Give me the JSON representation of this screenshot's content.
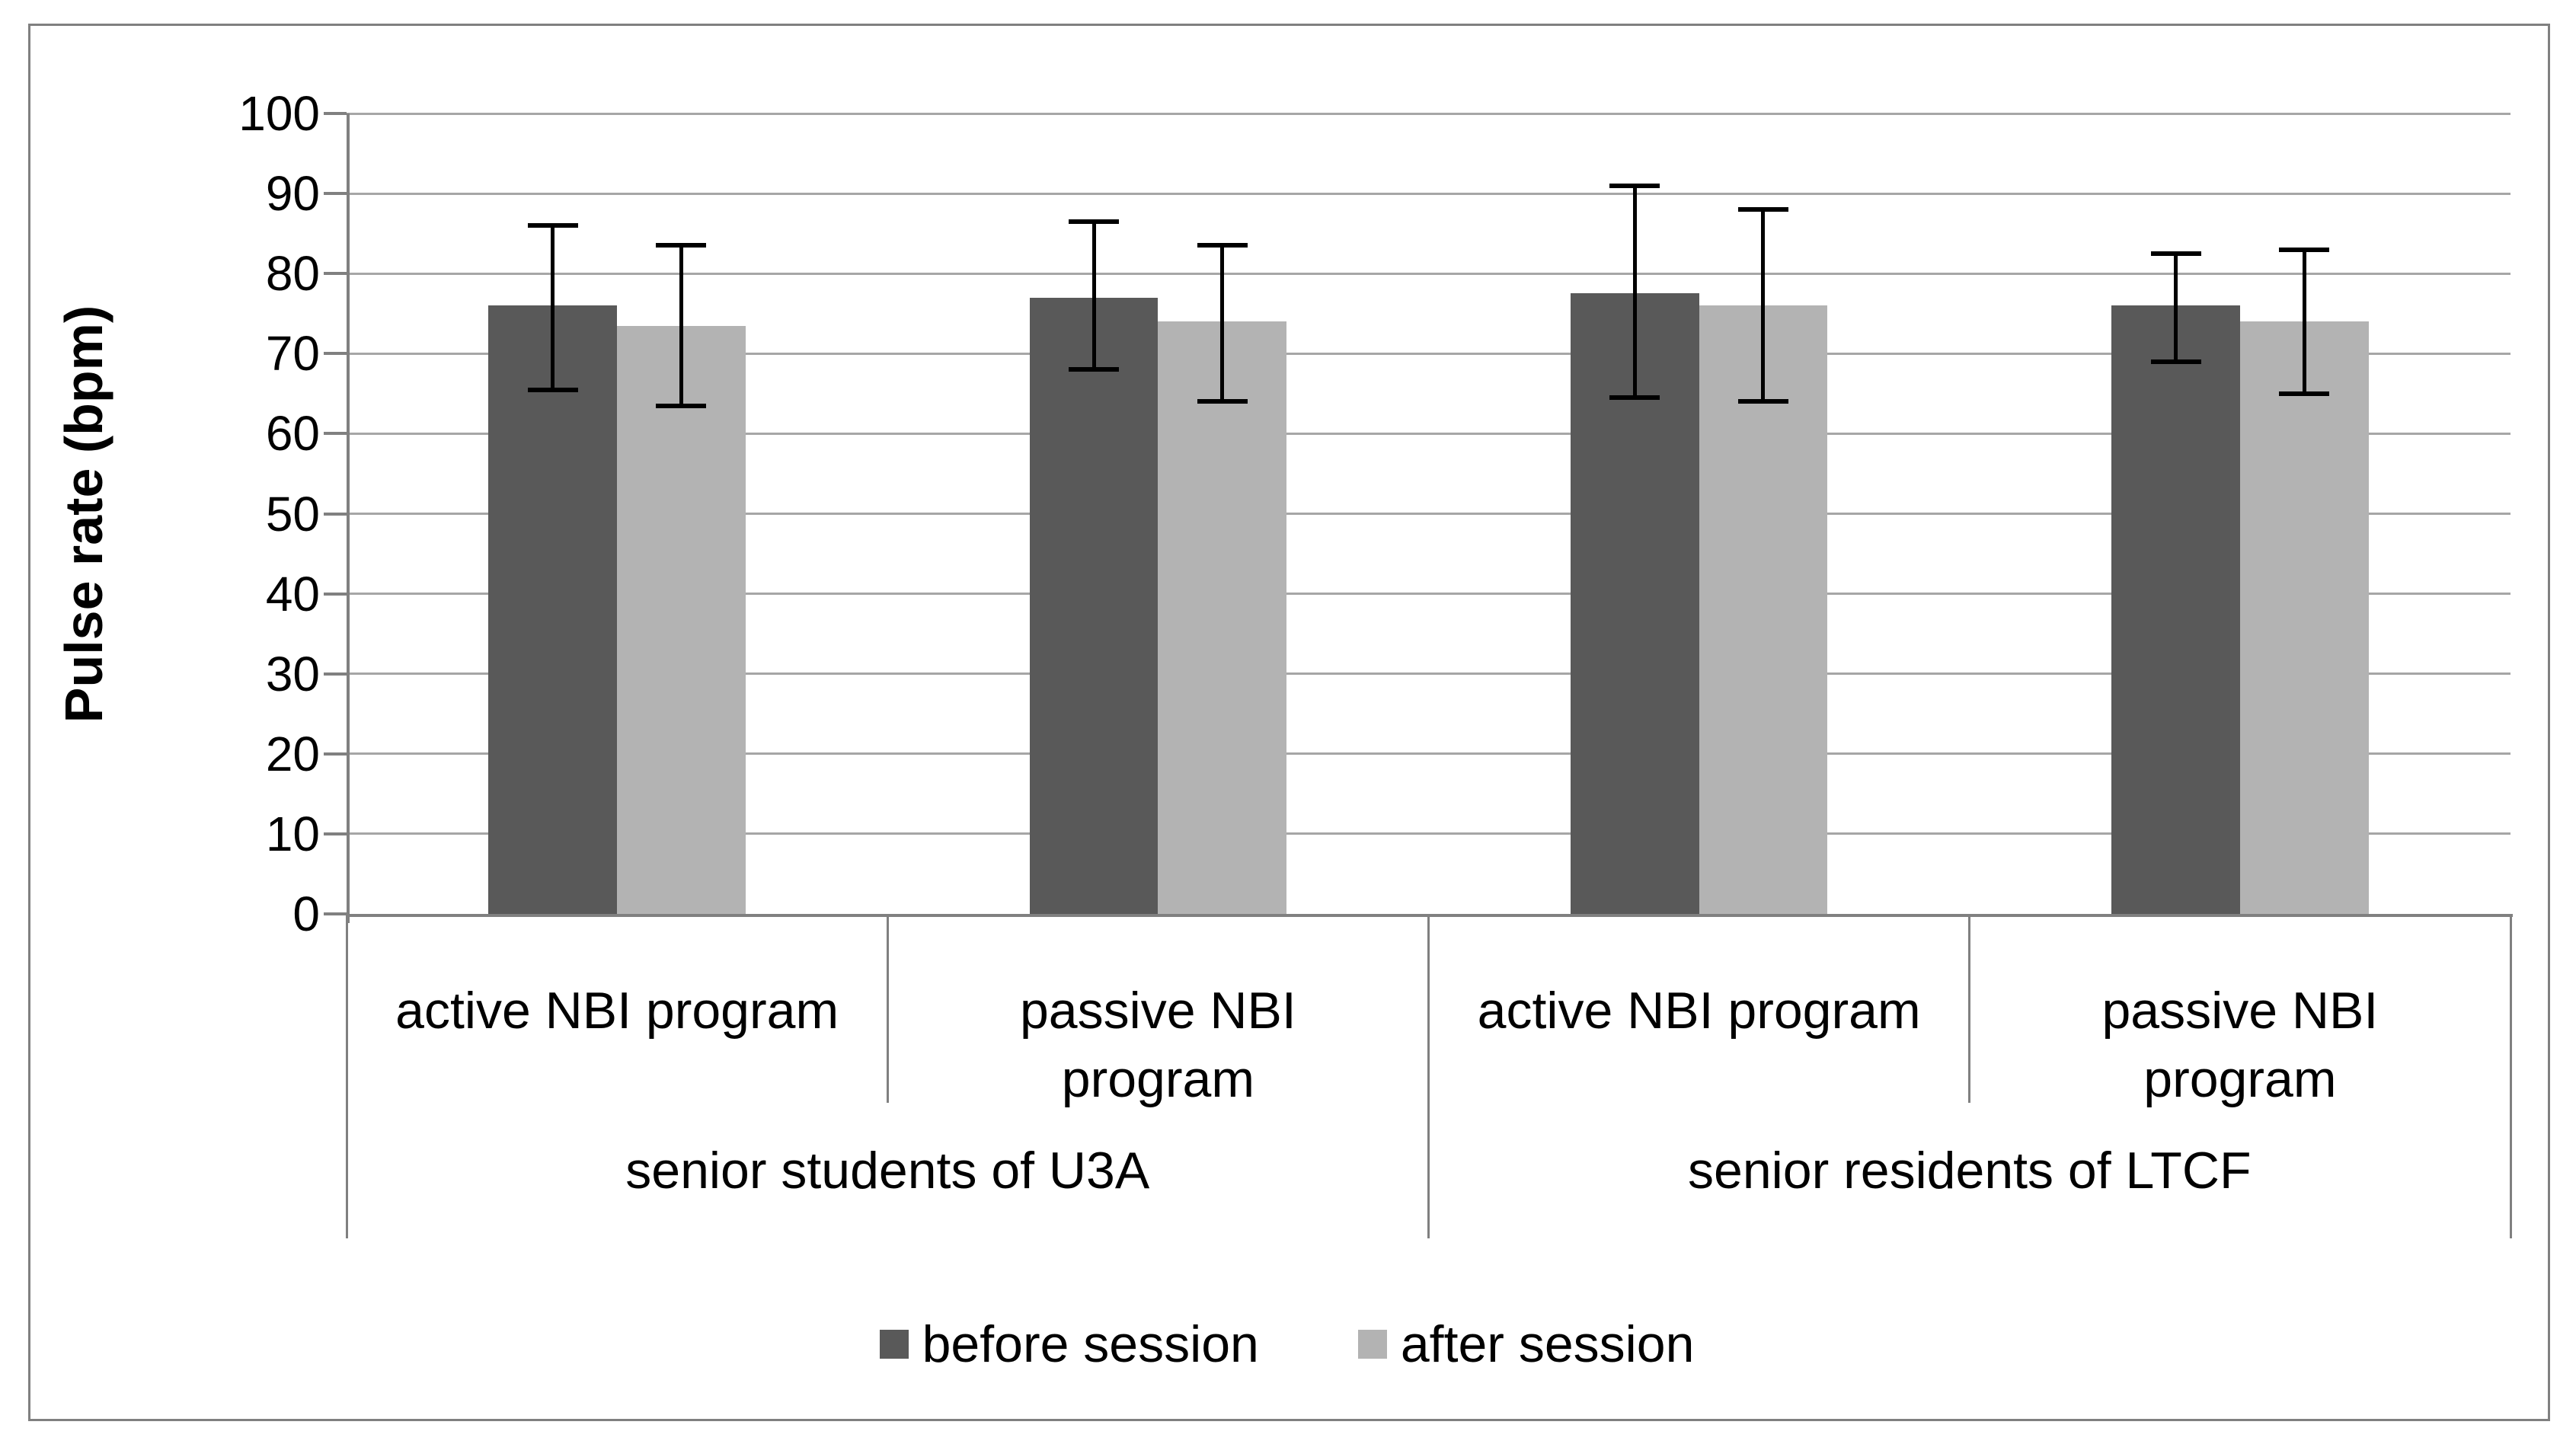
{
  "chart_data": {
    "type": "bar",
    "title": "",
    "ylabel": "Pulse rate (bpm)",
    "ylim": [
      0,
      100
    ],
    "yticks": [
      0,
      10,
      20,
      30,
      40,
      50,
      60,
      70,
      80,
      90,
      100
    ],
    "grid": true,
    "legend_position": "bottom",
    "categories": [
      {
        "label": "active NBI program",
        "lines": [
          "active NBI program"
        ],
        "group": "senior students of U3A"
      },
      {
        "label": "passive NBI program",
        "lines": [
          "passive NBI",
          "program"
        ],
        "group": "senior students of U3A"
      },
      {
        "label": "active NBI program",
        "lines": [
          "active NBI program"
        ],
        "group": "senior residents of LTCF"
      },
      {
        "label": "passive NBI program",
        "lines": [
          "passive NBI",
          "program"
        ],
        "group": "senior residents of LTCF"
      }
    ],
    "group_axis": [
      {
        "label": "senior students of U3A",
        "span": [
          0,
          1
        ]
      },
      {
        "label": "senior residents of LTCF",
        "span": [
          2,
          3
        ]
      }
    ],
    "series": [
      {
        "name": "before session",
        "color": "#595959",
        "values": [
          76,
          77,
          77.5,
          76
        ],
        "error_low": [
          65.5,
          68,
          64.5,
          69
        ],
        "error_high": [
          86,
          86.5,
          91,
          82.5
        ]
      },
      {
        "name": "after session",
        "color": "#b3b3b3",
        "values": [
          73.5,
          74,
          76,
          74
        ],
        "error_low": [
          63.5,
          64,
          64,
          65
        ],
        "error_high": [
          83.5,
          83.5,
          88,
          83
        ]
      }
    ],
    "colors": {
      "gridline": "#a6a6a6",
      "axis": "#808080",
      "frame": "#808080",
      "error_bar": "#000000",
      "text": "#000000"
    }
  }
}
